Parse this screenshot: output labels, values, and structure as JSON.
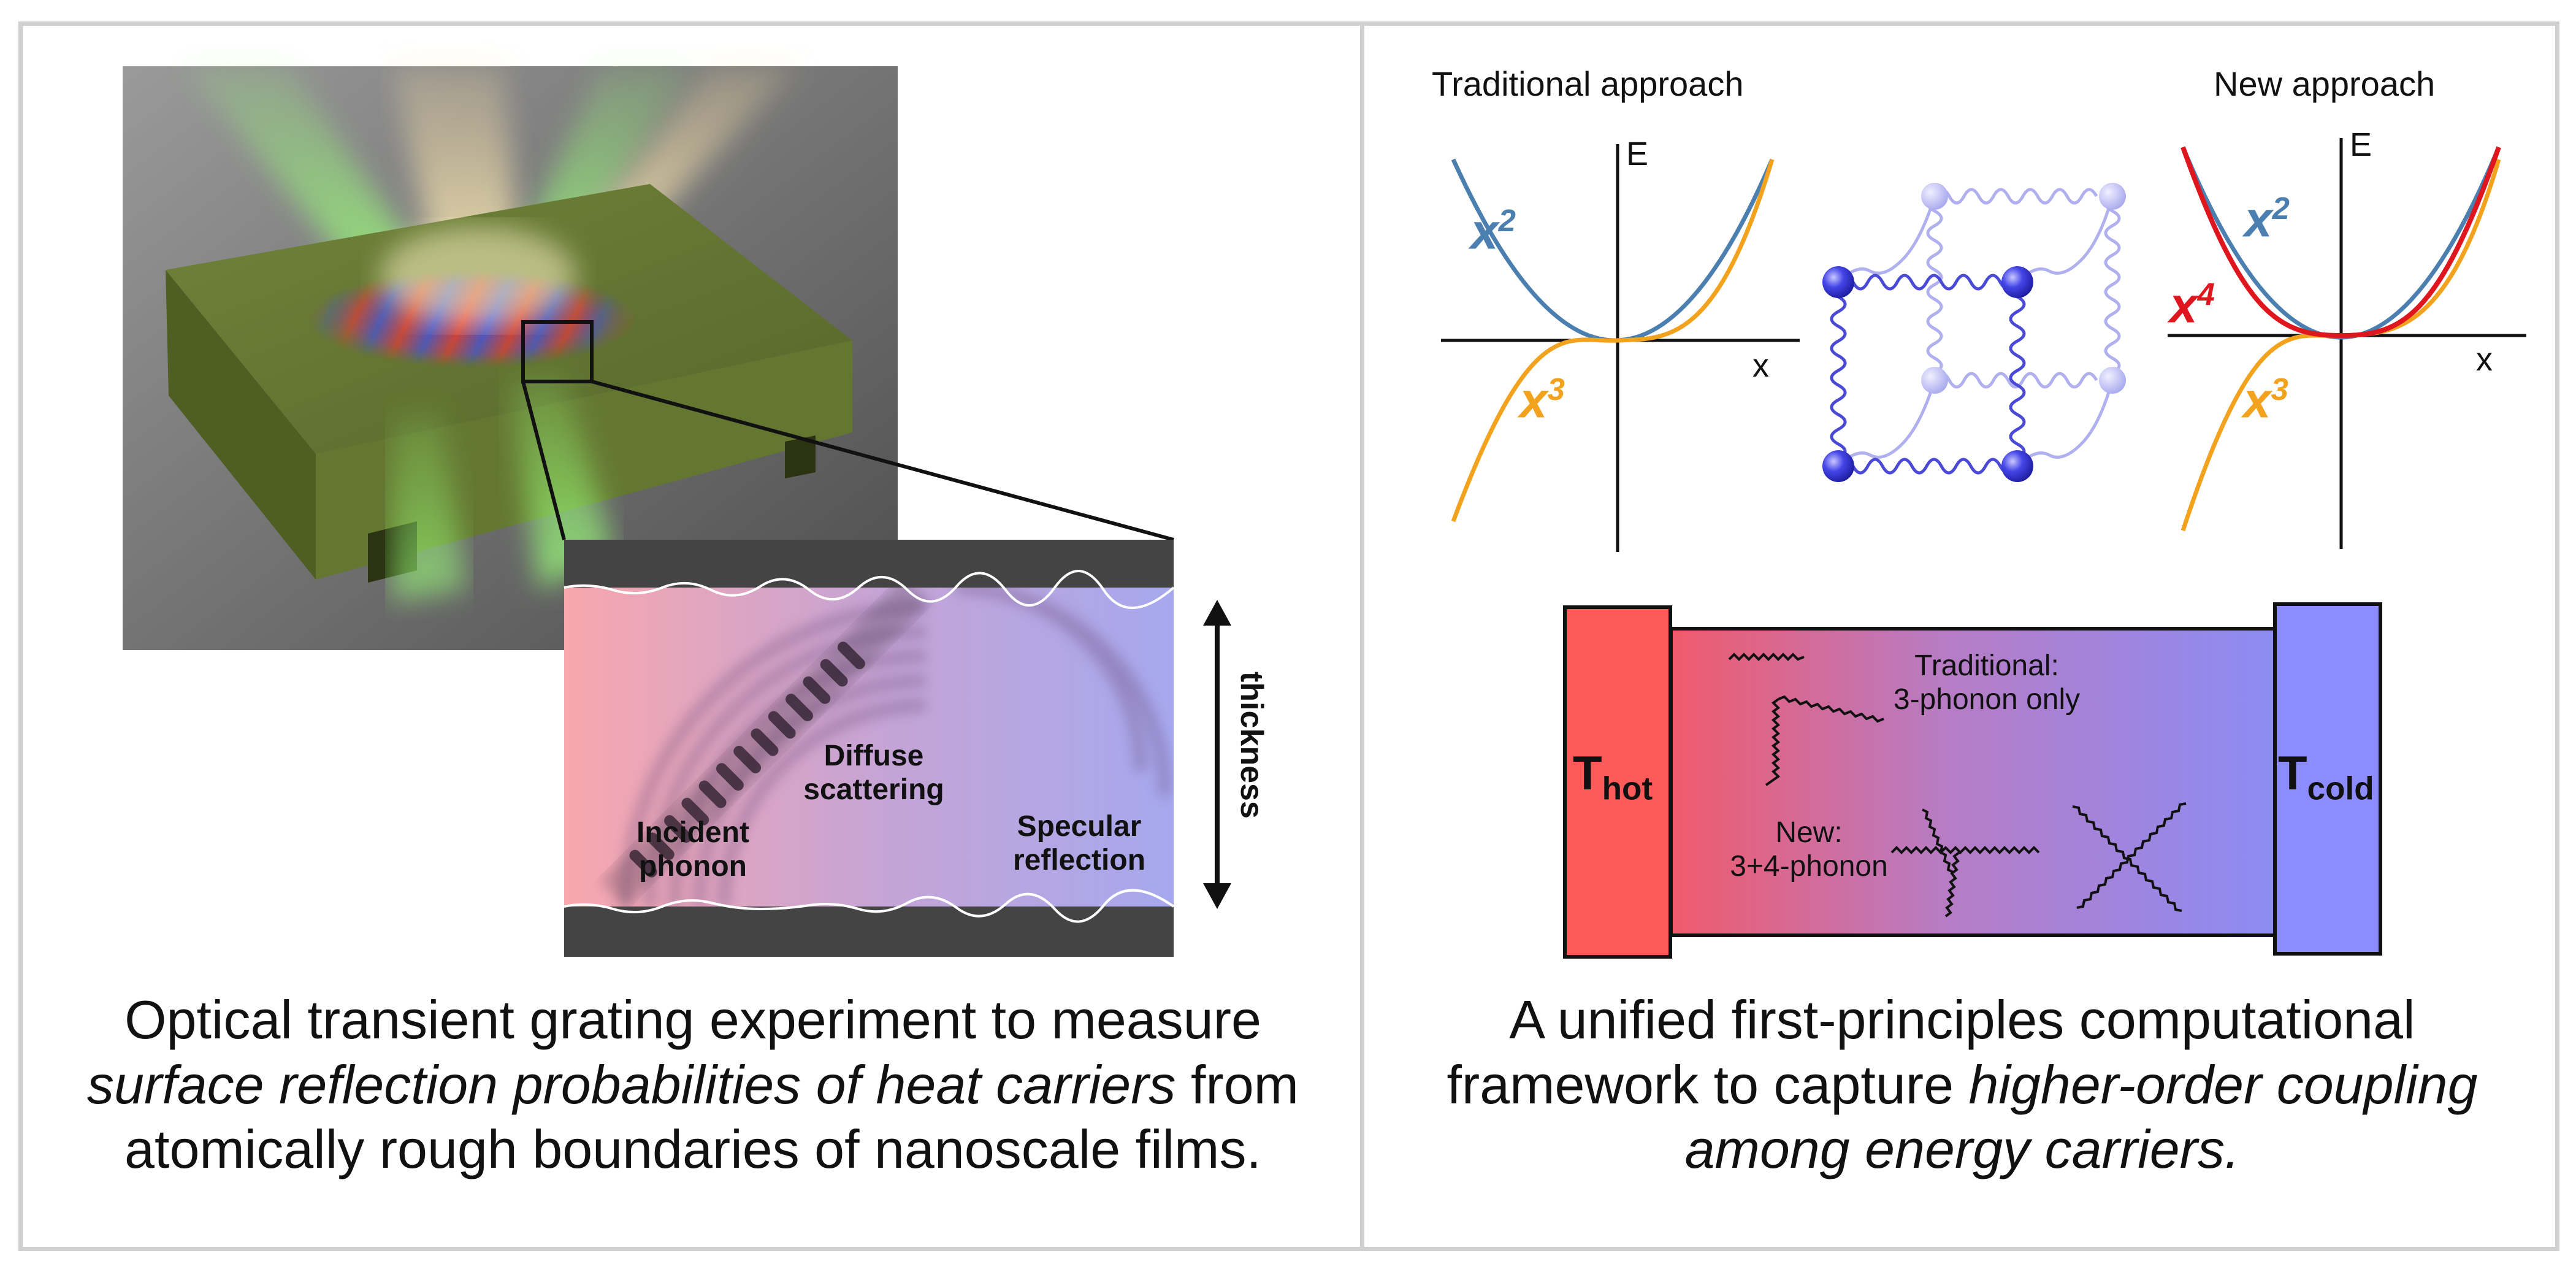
{
  "left": {
    "labels": {
      "incident": "Incident\nphonon",
      "diffuse": "Diffuse\nscattering",
      "specular": "Specular\nreflection",
      "thickness": "thickness"
    },
    "caption": {
      "line1": "Optical transient grating experiment to measure",
      "line2": "surface reflection probabilities of heat carriers",
      "line2_rest": " from",
      "line3": "atomically rough boundaries of nanoscale films."
    }
  },
  "right": {
    "traditional": {
      "title": "Traditional approach",
      "e_label": "E",
      "x_label": "x",
      "x2": "x",
      "x2_exp": "2",
      "x3": "x",
      "x3_exp": "3"
    },
    "new": {
      "title": "New approach",
      "e_label": "E",
      "x_label": "x",
      "x2": "x",
      "x2_exp": "2",
      "x3": "x",
      "x3_exp": "3",
      "x4": "x",
      "x4_exp": "4"
    },
    "heat": {
      "t_hot": "T",
      "t_hot_sub": "hot",
      "t_cold": "T",
      "t_cold_sub": "cold",
      "traditional": "Traditional:\n3-phonon only",
      "new": "New:\n3+4-phonon"
    },
    "caption": {
      "line1": "A unified first-principles computational",
      "line2": "framework to capture ",
      "line2_em": "higher-order coupling",
      "line3": "among energy carriers."
    }
  },
  "colors": {
    "x2": "#4a7fb0",
    "x3": "#f3a21d",
    "x4": "#e0161f",
    "hot": "#ff5a5a",
    "cold": "#8c8cff",
    "film": "#5f7028",
    "beam": "#7ff05a"
  }
}
